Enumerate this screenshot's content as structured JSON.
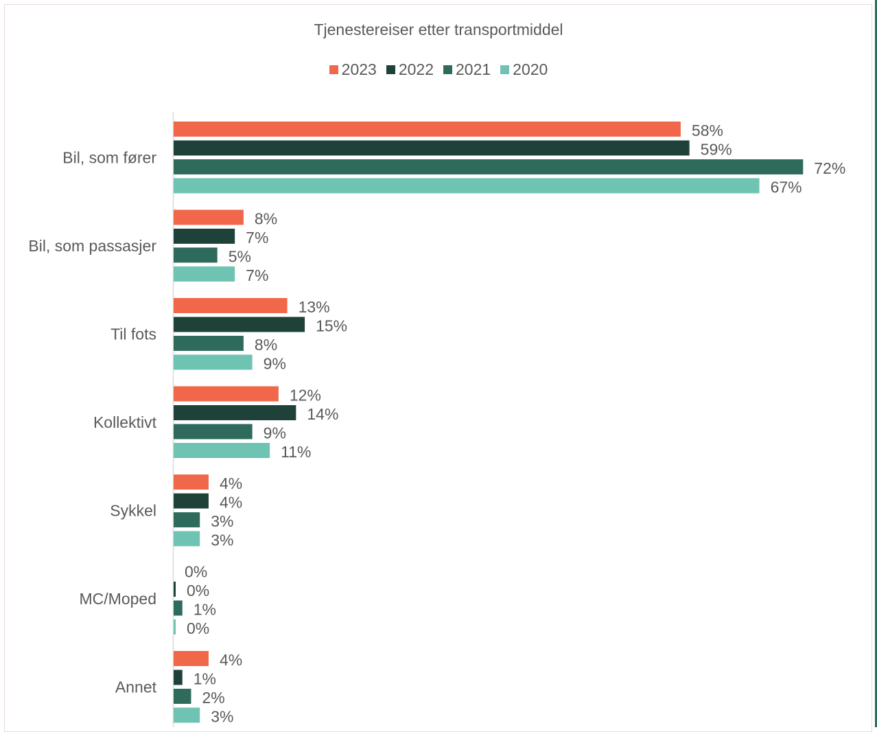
{
  "chart_data": {
    "type": "bar",
    "orientation": "horizontal",
    "title": "Tjenestereiser etter transportmiddel",
    "categories": [
      "Bil, som fører",
      "Bil, som passasjer",
      "Til fots",
      "Kollektivt",
      "Sykkel",
      "MC/Moped",
      "Annet"
    ],
    "series": [
      {
        "name": "2023",
        "color": "#f0674a",
        "values": [
          58,
          8,
          13,
          12,
          4,
          0,
          4
        ],
        "labels": [
          "58%",
          "8%",
          "13%",
          "12%",
          "4%",
          "0%",
          "4%"
        ]
      },
      {
        "name": "2022",
        "color": "#1e4239",
        "values": [
          59,
          7,
          15,
          14,
          4,
          0,
          1
        ],
        "labels": [
          "59%",
          "7%",
          "15%",
          "14%",
          "4%",
          "0%",
          "1%"
        ]
      },
      {
        "name": "2021",
        "color": "#2f6b5c",
        "values": [
          72,
          5,
          8,
          9,
          3,
          1,
          2
        ],
        "labels": [
          "72%",
          "5%",
          "8%",
          "9%",
          "3%",
          "1%",
          "2%"
        ]
      },
      {
        "name": "2020",
        "color": "#6fc3b2",
        "values": [
          67,
          7,
          9,
          11,
          3,
          0,
          3
        ],
        "labels": [
          "67%",
          "7%",
          "9%",
          "11%",
          "3%",
          "0%",
          "3%"
        ]
      }
    ],
    "legend_position": "top",
    "grid": false,
    "data_labels": true
  }
}
